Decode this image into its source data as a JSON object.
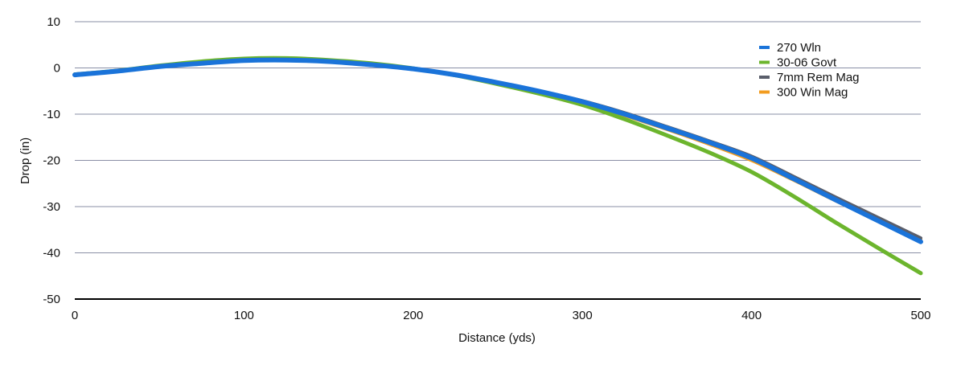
{
  "chart_data": {
    "type": "line",
    "title": "",
    "xlabel": "Distance (yds)",
    "ylabel": "Drop (in)",
    "xlim": [
      0,
      500
    ],
    "ylim": [
      -50,
      10
    ],
    "x_ticks": [
      0,
      100,
      200,
      300,
      400,
      500
    ],
    "y_ticks": [
      10,
      0,
      -10,
      -20,
      -30,
      -40,
      -50
    ],
    "grid": true,
    "legend_position": "top-right",
    "x": [
      0,
      25,
      50,
      75,
      100,
      125,
      150,
      175,
      200,
      225,
      250,
      275,
      300,
      325,
      350,
      375,
      400,
      425,
      450,
      475,
      500
    ],
    "series": [
      {
        "name": "300 Win Mag",
        "color": "#f29c1f",
        "values": [
          -1.5,
          -0.7,
          0.3,
          1.1,
          1.8,
          1.9,
          1.6,
          0.9,
          -0.1,
          -1.5,
          -3.3,
          -5.3,
          -7.5,
          -10.3,
          -13.3,
          -16.5,
          -20.0,
          -24.3,
          -28.8,
          -33.0,
          -37.2
        ]
      },
      {
        "name": "7mm Rem Mag",
        "color": "#5a5e6b",
        "values": [
          -1.5,
          -0.7,
          0.3,
          1.1,
          1.7,
          1.8,
          1.5,
          0.8,
          -0.1,
          -1.4,
          -3.1,
          -5.0,
          -7.1,
          -9.7,
          -12.7,
          -15.8,
          -19.1,
          -23.5,
          -28.0,
          -32.4,
          -36.8
        ]
      },
      {
        "name": "30-06 Govt",
        "color": "#6cb52d",
        "values": [
          -1.4,
          -0.6,
          0.5,
          1.4,
          2.0,
          2.1,
          1.7,
          1.0,
          -0.1,
          -1.6,
          -3.5,
          -5.6,
          -8.0,
          -11.1,
          -14.6,
          -18.3,
          -22.5,
          -27.8,
          -33.5,
          -39.0,
          -44.4
        ]
      },
      {
        "name": "270 Wln",
        "color": "#1a73d9",
        "values": [
          -1.5,
          -0.7,
          0.3,
          1.0,
          1.6,
          1.7,
          1.4,
          0.7,
          -0.2,
          -1.5,
          -3.2,
          -5.1,
          -7.3,
          -10.0,
          -13.0,
          -16.1,
          -19.5,
          -24.0,
          -28.6,
          -33.1,
          -37.6
        ]
      }
    ],
    "legend": [
      "270 Wln",
      "30-06 Govt",
      "7mm Rem Mag",
      "300 Win Mag"
    ]
  }
}
